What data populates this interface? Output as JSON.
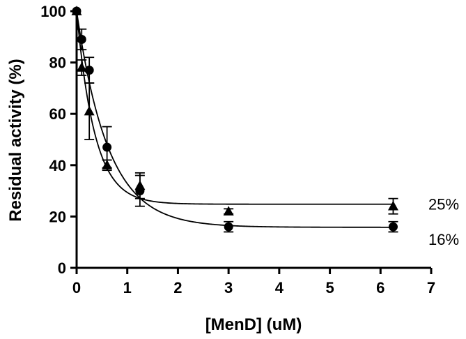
{
  "chart_data": {
    "type": "scatter",
    "xlabel": "[MenD] (uM)",
    "ylabel": "Residual activity (%)",
    "xlim": [
      0,
      7
    ],
    "ylim": [
      0,
      100
    ],
    "x_ticks": [
      0,
      1,
      2,
      3,
      4,
      5,
      6,
      7
    ],
    "y_ticks": [
      0,
      20,
      40,
      60,
      80,
      100
    ],
    "grid": false,
    "series": [
      {
        "marker": "circle",
        "x": [
          0,
          0.1,
          0.25,
          0.6,
          1.25,
          3,
          6.25
        ],
        "y": [
          100,
          89,
          77,
          47,
          30,
          16,
          16
        ],
        "error": [
          0,
          4,
          5,
          8,
          6,
          2,
          2
        ],
        "fit": {
          "plateau": 15.8,
          "y0": 100,
          "k": 1.6
        }
      },
      {
        "marker": "triangle",
        "x": [
          0,
          0.1,
          0.25,
          0.6,
          1.25,
          3,
          6.25
        ],
        "y": [
          100,
          78,
          61,
          40,
          32,
          22,
          24
        ],
        "error": [
          0,
          3,
          11,
          2,
          5,
          1,
          3
        ],
        "fit": {
          "plateau": 24.8,
          "y0": 100,
          "k": 2.8
        }
      }
    ],
    "annotations": [
      {
        "text": "25%",
        "series": 1
      },
      {
        "text": "16%",
        "series": 0
      }
    ]
  }
}
